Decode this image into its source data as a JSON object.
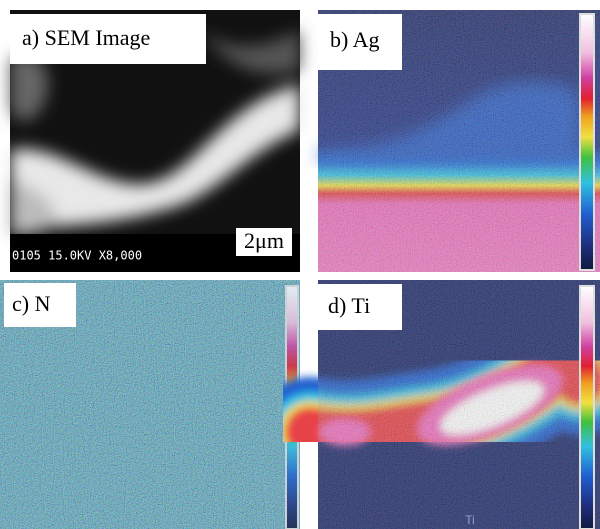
{
  "panels": [
    {
      "label": "a) SEM Image",
      "scale_bar": "2μm",
      "info": "0105  15.0KV    X8,000"
    },
    {
      "label": "b) Ag"
    },
    {
      "label": "c) N"
    },
    {
      "label": "d) Ti",
      "footer": "Ti"
    }
  ]
}
